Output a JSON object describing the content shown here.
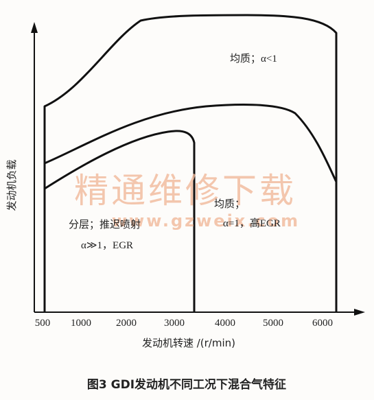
{
  "diagram": {
    "y_axis_label": "发动机负载",
    "x_axis_label": "发动机转速 /(r/min)",
    "x_ticks": [
      "500",
      "1000",
      "2000",
      "3000",
      "4000",
      "5000",
      "6000"
    ],
    "regions": [
      {
        "label": "均质；α<1"
      },
      {
        "label": "分层；推迟喷射",
        "label2": "α≫1，EGR"
      },
      {
        "label": "均质；",
        "label2": "α=1，高EGR"
      }
    ],
    "watermark": "精通维修下载",
    "watermark_url": "www.gzweix.com",
    "caption": "图3 GDI发动机不同工况下混合气特征"
  }
}
